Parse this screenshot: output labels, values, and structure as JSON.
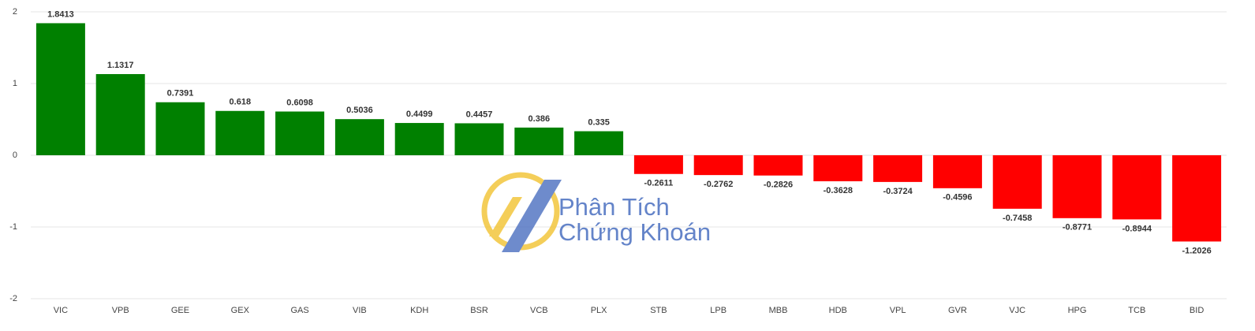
{
  "chart_data": {
    "type": "bar",
    "categories": [
      "VIC",
      "VPB",
      "GEE",
      "GEX",
      "GAS",
      "VIB",
      "KDH",
      "BSR",
      "VCB",
      "PLX",
      "STB",
      "LPB",
      "MBB",
      "HDB",
      "VPL",
      "GVR",
      "VJC",
      "HPG",
      "TCB",
      "BID"
    ],
    "values": [
      1.8413,
      1.1317,
      0.7391,
      0.618,
      0.6098,
      0.5036,
      0.4499,
      0.4457,
      0.386,
      0.335,
      -0.2611,
      -0.2762,
      -0.2826,
      -0.3628,
      -0.3724,
      -0.4596,
      -0.7458,
      -0.8771,
      -0.8944,
      -1.2026
    ],
    "positive_color": "#008000",
    "negative_color": "#ff0000",
    "ylim": [
      -2,
      2
    ],
    "yticks": [
      -2,
      -1,
      0,
      1,
      2
    ],
    "grid": true,
    "watermark": [
      "Phân Tích",
      "Chứng Khoán"
    ]
  }
}
